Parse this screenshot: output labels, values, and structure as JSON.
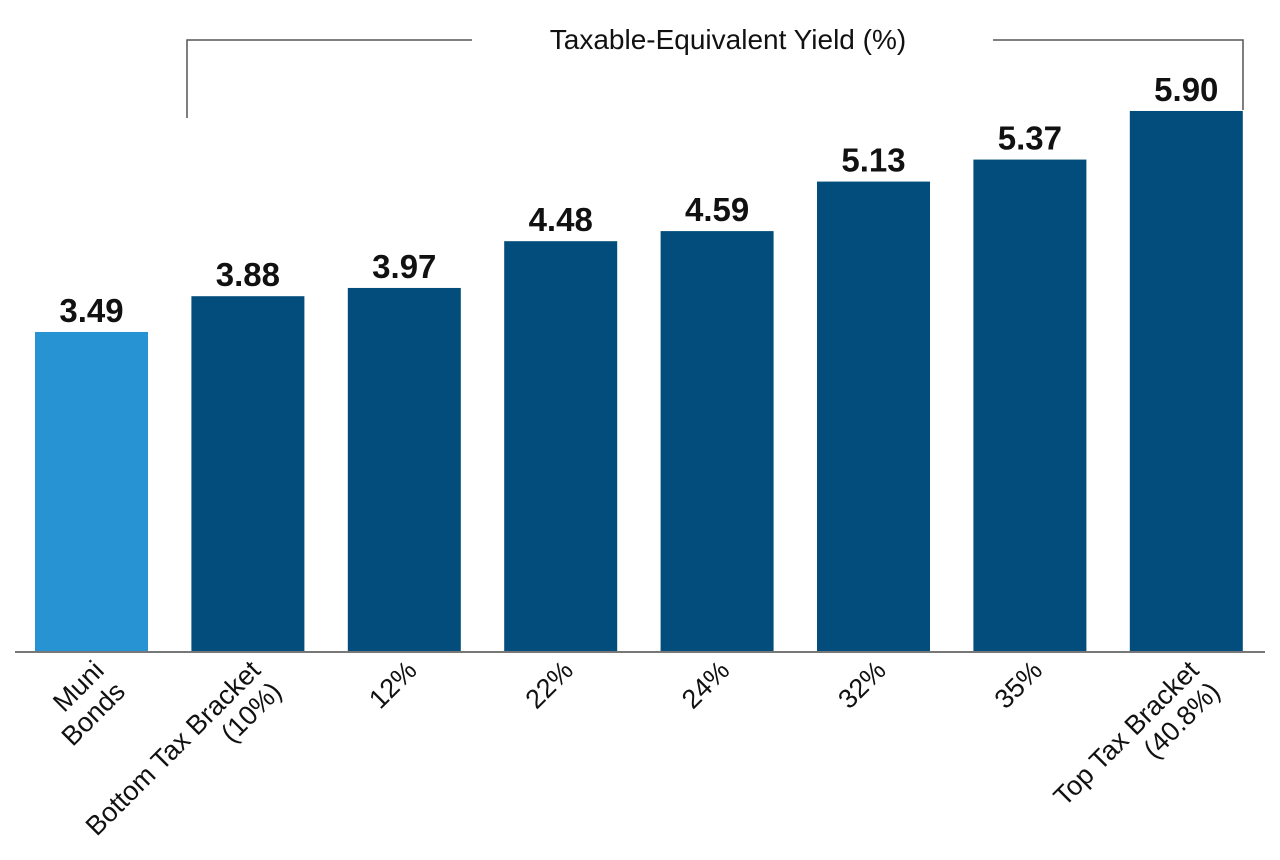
{
  "chart_data": {
    "type": "bar",
    "title": "Taxable-Equivalent Yield (%)",
    "categories": [
      [
        "Muni",
        "Bonds"
      ],
      [
        "Bottom Tax Bracket",
        "(10%)"
      ],
      [
        "12%"
      ],
      [
        "22%"
      ],
      [
        "24%"
      ],
      [
        "32%"
      ],
      [
        "35%"
      ],
      [
        "Top Tax Bracket",
        "(40.8%)"
      ]
    ],
    "values": [
      3.49,
      3.88,
      3.97,
      4.48,
      4.59,
      5.13,
      5.37,
      5.9
    ],
    "value_labels": [
      "3.49",
      "3.88",
      "3.97",
      "4.48",
      "4.59",
      "5.13",
      "5.37",
      "5.90"
    ],
    "colors": [
      "#2893d2",
      "#034d7c",
      "#034d7c",
      "#034d7c",
      "#034d7c",
      "#034d7c",
      "#034d7c",
      "#034d7c"
    ],
    "ylim": [
      0,
      7
    ],
    "grid": false,
    "y_axis_shown": false,
    "xlabel": "",
    "ylabel": ""
  }
}
